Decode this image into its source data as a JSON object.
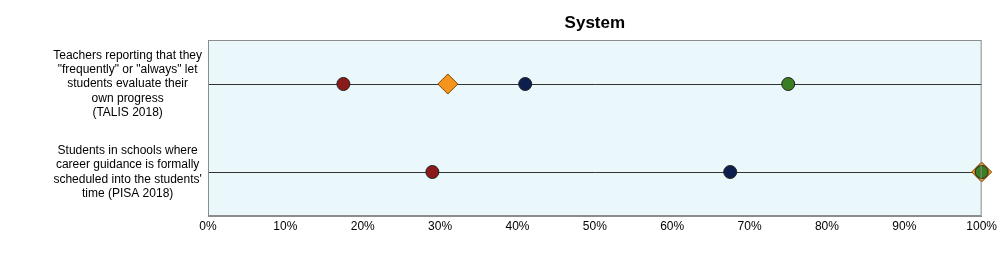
{
  "chart_data": {
    "type": "dot",
    "title": "System",
    "categories": [
      [
        "Teachers reporting that they",
        "\"frequently\" or \"always\" let",
        "students evaluate their",
        "own progress",
        "(TALIS 2018)"
      ],
      [
        "Students in schools where",
        "career guidance is formally",
        "scheduled into the students'",
        "time (PISA 2018)"
      ]
    ],
    "series": [
      {
        "color": "#3a7d22",
        "marker": "circle",
        "values": [
          75,
          100
        ]
      },
      {
        "color": "#0d1f4f",
        "marker": "circle",
        "values": [
          41,
          67.5
        ]
      },
      {
        "color": "#8b1a1a",
        "marker": "circle",
        "values": [
          17.5,
          29
        ]
      },
      {
        "color": "#f7941d",
        "marker": "diamond",
        "values": [
          31,
          100
        ]
      }
    ],
    "xlim": [
      0,
      100
    ],
    "xticks": [
      {
        "value": 0,
        "label": "0%"
      },
      {
        "value": 10,
        "label": "10%"
      },
      {
        "value": 20,
        "label": "20%"
      },
      {
        "value": 30,
        "label": "30%"
      },
      {
        "value": 40,
        "label": "40%"
      },
      {
        "value": 50,
        "label": "50%"
      },
      {
        "value": 60,
        "label": "60%"
      },
      {
        "value": 70,
        "label": "70%"
      },
      {
        "value": 80,
        "label": "80%"
      },
      {
        "value": 90,
        "label": "90%"
      },
      {
        "value": 100,
        "label": "100%"
      }
    ],
    "grid": true
  }
}
